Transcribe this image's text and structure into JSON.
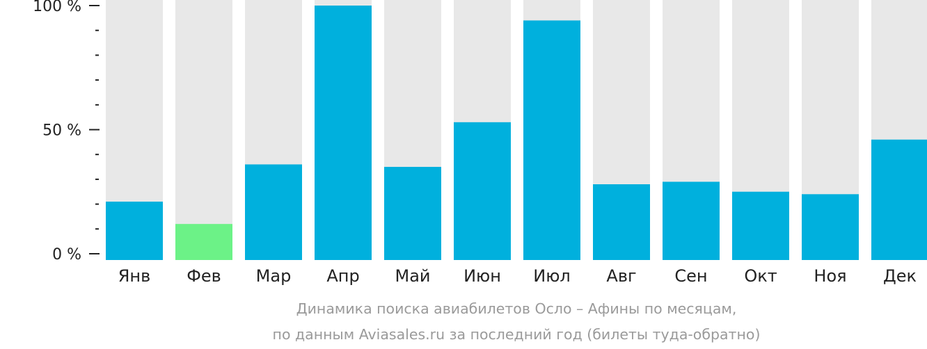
{
  "chart_data": {
    "type": "bar",
    "categories": [
      "Янв",
      "Фев",
      "Мар",
      "Апр",
      "Май",
      "Июн",
      "Июл",
      "Авг",
      "Сен",
      "Окт",
      "Ноя",
      "Дек"
    ],
    "values": [
      21,
      12,
      36,
      100,
      35,
      53,
      94,
      28,
      29,
      25,
      24,
      46
    ],
    "highlight_index": 1,
    "ylim": [
      0,
      100
    ],
    "yticks": [
      {
        "value": 0,
        "label": "0 %"
      },
      {
        "value": 50,
        "label": "50 %"
      },
      {
        "value": 100,
        "label": "100 %"
      }
    ],
    "minor_tick_step": 10,
    "grid": false,
    "xlabel": "",
    "ylabel": "",
    "caption_lines": [
      "Динамика поиска авиабилетов Осло – Афины по месяцам,",
      "по данным Aviasales.ru за последний год (билеты туда-обратно)"
    ],
    "colors": {
      "bar": "#00b0dd",
      "highlight": "#6cf287",
      "track": "#e8e8e8",
      "axis_text": "#222222",
      "caption_text": "#9a9a9a"
    }
  }
}
